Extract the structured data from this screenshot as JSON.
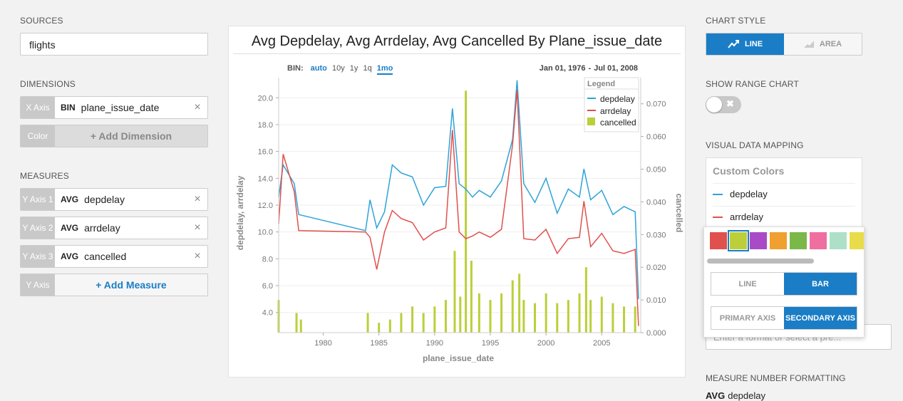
{
  "left": {
    "sources_label": "SOURCES",
    "source": "flights",
    "dimensions_label": "DIMENSIONS",
    "dimension": {
      "tag": "X Axis",
      "agg": "BIN",
      "field": "plane_issue_date"
    },
    "add_dimension": {
      "tag": "Color",
      "label": "+ Add Dimension"
    },
    "measures_label": "MEASURES",
    "measures": [
      {
        "tag": "Y Axis 1",
        "agg": "AVG",
        "field": "depdelay"
      },
      {
        "tag": "Y Axis 2",
        "agg": "AVG",
        "field": "arrdelay"
      },
      {
        "tag": "Y Axis 3",
        "agg": "AVG",
        "field": "cancelled"
      }
    ],
    "add_measure": {
      "tag": "Y Axis",
      "label": "+ Add Measure"
    },
    "remove_icon": "×"
  },
  "chart": {
    "title": "Avg Depdelay, Avg Arrdelay, Avg Cancelled By Plane_issue_date",
    "bin_label": "BIN:",
    "bin_options": [
      "auto",
      "10y",
      "1y",
      "1q",
      "1mo"
    ],
    "bin_active": "auto",
    "bin_selected": "1mo",
    "date_start": "Jan 01, 1976",
    "date_dash": "-",
    "date_end": "Jul 01, 2008",
    "legend_title": "Legend",
    "xlabel": "plane_issue_date",
    "ylabel": "depdelay, arrdelay",
    "y2label": "cancelled",
    "x_ticks": [
      "1980",
      "1985",
      "1990",
      "1995",
      "2000",
      "2005"
    ],
    "y_ticks": [
      "4.0",
      "6.0",
      "8.0",
      "10.0",
      "12.0",
      "14.0",
      "16.0",
      "18.0",
      "20.0"
    ],
    "y2_ticks": [
      "0.000",
      "0.010",
      "0.020",
      "0.030",
      "0.040",
      "0.050",
      "0.060",
      "0.070"
    ]
  },
  "chart_data": {
    "type": "line",
    "title": "Avg Depdelay, Avg Arrdelay, Avg Cancelled By Plane_issue_date",
    "xlabel": "plane_issue_date",
    "ylabel": "depdelay, arrdelay",
    "y2label": "cancelled",
    "xlim": [
      1976,
      2008.5
    ],
    "ylim": [
      2.5,
      21.5
    ],
    "y2lim": [
      0,
      0.078
    ],
    "legend": "top-right",
    "series": [
      {
        "name": "depdelay",
        "type": "line",
        "axis": "primary",
        "color": "#2ea3d8",
        "points": [
          [
            1976.0,
            12.6
          ],
          [
            1976.4,
            15.0
          ],
          [
            1977.4,
            13.6
          ],
          [
            1977.8,
            11.3
          ],
          [
            1983.8,
            10.1
          ],
          [
            1984.2,
            12.4
          ],
          [
            1984.8,
            10.3
          ],
          [
            1985.5,
            11.5
          ],
          [
            1986.2,
            15.0
          ],
          [
            1987.0,
            14.4
          ],
          [
            1988.0,
            14.1
          ],
          [
            1989.0,
            12.0
          ],
          [
            1990.0,
            13.3
          ],
          [
            1991.0,
            13.4
          ],
          [
            1991.6,
            19.2
          ],
          [
            1992.2,
            13.6
          ],
          [
            1992.8,
            13.2
          ],
          [
            1993.4,
            12.6
          ],
          [
            1994.0,
            13.1
          ],
          [
            1995.0,
            12.6
          ],
          [
            1996.0,
            13.8
          ],
          [
            1997.0,
            16.9
          ],
          [
            1997.4,
            21.3
          ],
          [
            1998.0,
            13.6
          ],
          [
            1999.0,
            12.2
          ],
          [
            2000.0,
            14.0
          ],
          [
            2001.0,
            11.4
          ],
          [
            2002.0,
            13.2
          ],
          [
            2003.0,
            12.6
          ],
          [
            2003.4,
            14.7
          ],
          [
            2004.0,
            12.4
          ],
          [
            2005.0,
            13.1
          ],
          [
            2006.0,
            11.3
          ],
          [
            2007.0,
            11.9
          ],
          [
            2008.0,
            11.5
          ],
          [
            2008.3,
            5.0
          ]
        ]
      },
      {
        "name": "arrdelay",
        "type": "line",
        "axis": "primary",
        "color": "#e0504d",
        "points": [
          [
            1976.0,
            10.6
          ],
          [
            1976.4,
            15.8
          ],
          [
            1977.4,
            13.0
          ],
          [
            1977.8,
            10.1
          ],
          [
            1983.8,
            10.0
          ],
          [
            1984.2,
            9.6
          ],
          [
            1984.8,
            7.2
          ],
          [
            1985.5,
            10.0
          ],
          [
            1986.2,
            11.6
          ],
          [
            1987.0,
            11.0
          ],
          [
            1988.0,
            10.7
          ],
          [
            1989.0,
            9.4
          ],
          [
            1990.0,
            10.0
          ],
          [
            1991.0,
            10.3
          ],
          [
            1991.6,
            17.6
          ],
          [
            1992.2,
            10.0
          ],
          [
            1992.8,
            9.5
          ],
          [
            1993.4,
            9.7
          ],
          [
            1994.0,
            10.0
          ],
          [
            1995.0,
            9.6
          ],
          [
            1996.0,
            10.2
          ],
          [
            1997.0,
            16.5
          ],
          [
            1997.4,
            20.6
          ],
          [
            1998.0,
            9.5
          ],
          [
            1999.0,
            9.4
          ],
          [
            2000.0,
            10.2
          ],
          [
            2001.0,
            8.4
          ],
          [
            2002.0,
            9.5
          ],
          [
            2003.0,
            9.6
          ],
          [
            2003.4,
            12.3
          ],
          [
            2004.0,
            8.9
          ],
          [
            2005.0,
            9.9
          ],
          [
            2006.0,
            8.6
          ],
          [
            2007.0,
            8.4
          ],
          [
            2008.0,
            8.7
          ],
          [
            2008.3,
            3.0
          ]
        ]
      },
      {
        "name": "cancelled",
        "type": "bar",
        "axis": "secondary",
        "color": "#bccf3a",
        "points": [
          [
            1976.0,
            0.01
          ],
          [
            1977.6,
            0.006
          ],
          [
            1978.0,
            0.004
          ],
          [
            1984.0,
            0.006
          ],
          [
            1985.0,
            0.003
          ],
          [
            1986.0,
            0.004
          ],
          [
            1987.0,
            0.006
          ],
          [
            1988.0,
            0.008
          ],
          [
            1989.0,
            0.006
          ],
          [
            1990.0,
            0.008
          ],
          [
            1991.0,
            0.01
          ],
          [
            1991.8,
            0.025
          ],
          [
            1992.3,
            0.011
          ],
          [
            1992.8,
            0.074
          ],
          [
            1993.3,
            0.022
          ],
          [
            1994.0,
            0.012
          ],
          [
            1995.0,
            0.01
          ],
          [
            1996.0,
            0.012
          ],
          [
            1997.0,
            0.016
          ],
          [
            1997.6,
            0.018
          ],
          [
            1998.0,
            0.01
          ],
          [
            1999.0,
            0.009
          ],
          [
            2000.0,
            0.012
          ],
          [
            2001.0,
            0.009
          ],
          [
            2002.0,
            0.01
          ],
          [
            2003.0,
            0.012
          ],
          [
            2003.6,
            0.02
          ],
          [
            2004.0,
            0.01
          ],
          [
            2005.0,
            0.011
          ],
          [
            2006.0,
            0.009
          ],
          [
            2007.0,
            0.008
          ],
          [
            2008.0,
            0.008
          ]
        ]
      }
    ]
  },
  "right": {
    "chart_style_label": "CHART STYLE",
    "style_line": "LINE",
    "style_area": "AREA",
    "range_label": "SHOW RANGE CHART",
    "range_off_mark": "✖",
    "vdm_label": "VISUAL DATA MAPPING",
    "custom_colors": "Custom Colors",
    "mapping": [
      {
        "name": "depdelay",
        "color": "#2ea3d8"
      },
      {
        "name": "arrdelay",
        "color": "#e0504d"
      }
    ],
    "swatches": [
      "#e0504d",
      "#bccf3a",
      "#a94bc7",
      "#f0a030",
      "#7bb84a",
      "#ef6fa0",
      "#aee0c8",
      "#e8dc4a"
    ],
    "swatch_selected": 1,
    "type_line": "LINE",
    "type_bar": "BAR",
    "primary_axis": "PRIMARY AXIS",
    "secondary_axis": "SECONDARY AXIS",
    "format_placeholder": "Enter a format or select a pre...",
    "mnf_label": "MEASURE NUMBER FORMATTING",
    "mnf_agg": "AVG",
    "mnf_field": "depdelay"
  }
}
